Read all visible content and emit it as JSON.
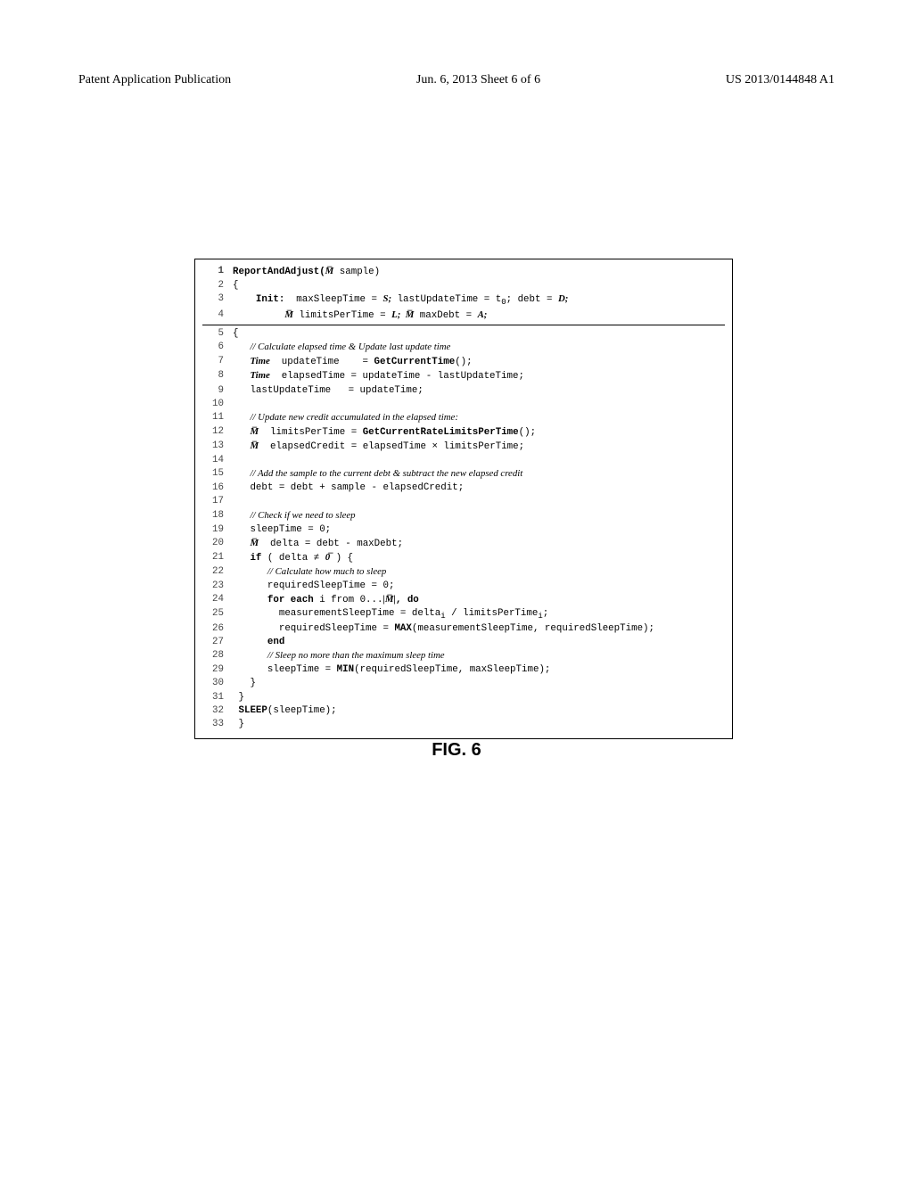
{
  "header": {
    "left": "Patent Application Publication",
    "mid": "Jun. 6, 2013  Sheet 6 of 6",
    "right": "US 2013/0144848 A1"
  },
  "figure_caption": "FIG. 6",
  "code": {
    "title_prefix": "ReportAndAdjust(",
    "title_vec": "M̅",
    "title_suffix": " sample)",
    "init_label": "Init:",
    "init_rest": "  maxSleepTime = ",
    "init_S": "S;",
    "init_rest2": " lastUpdateTime = t",
    "init_sub": "0",
    "init_rest3": "; debt = ",
    "init_D": "D;",
    "line4_vec": "M̅",
    "line4_rest": " limitsPerTime = ",
    "line4_L": "L;",
    "line4_vec2": "  M̅",
    "line4_rest2": " maxDebt = ",
    "line4_A": "A;",
    "comment6": "// Calculate elapsed time & Update last update time",
    "line7_kw": "Time",
    "line7_rest": "  updateTime    = ",
    "line7_fn": "GetCurrentTime",
    "line7_rest2": "();",
    "line8_kw": "Time",
    "line8_rest": "  elapsedTime = updateTime - lastUpdateTime;",
    "line9": "lastUpdateTime   = updateTime;",
    "comment11": "// Update new credit accumulated in the elapsed time:",
    "line12_vec": "M̅",
    "line12_rest": "  limitsPerTime = ",
    "line12_fn": "GetCurrentRateLimitsPerTime",
    "line12_rest2": "();",
    "line13_vec": "M̅",
    "line13_rest": "  elapsedCredit = elapsedTime × limitsPerTime;",
    "comment15": "// Add the sample to the current debt & subtract the new elapsed credit",
    "line16": "debt = debt + sample - elapsedCredit;",
    "comment18": "// Check if we need to sleep",
    "line19": "sleepTime = 0;",
    "line20_vec": "M̅",
    "line20_rest": "  delta = debt - maxDebt;",
    "line21_if": "if",
    "line21_rest": " ( delta ≠ ",
    "line21_zero": "0̅",
    "line21_rest2": " ) {",
    "comment22": "// Calculate how much to sleep",
    "line23": "requiredSleepTime = 0;",
    "line24_for": "for each",
    "line24_rest": " i from 0...",
    "line24_vec": "|M̅|",
    "line24_do": ", do",
    "line25": "measurementSleepTime = delta",
    "line25_sub": "i",
    "line25_rest": " / limitsPerTime",
    "line25_sub2": "i",
    "line25_rest2": ";",
    "line26_pre": "requiredSleepTime = ",
    "line26_max": "MAX",
    "line26_rest": "(measurementSleepTime, requiredSleepTime);",
    "line27": "end",
    "comment28": "// Sleep no more than the maximum sleep time",
    "line29_pre": "sleepTime = ",
    "line29_min": "MIN",
    "line29_rest": "(requiredSleepTime, maxSleepTime);",
    "line30": "}",
    "line31": "}",
    "line32_sleep": "SLEEP",
    "line32_rest": "(sleepTime);",
    "line33": "}",
    "lnums": [
      "1",
      "2",
      "3",
      "4",
      "5",
      "6",
      "7",
      "8",
      "9",
      "10",
      "11",
      "12",
      "13",
      "14",
      "15",
      "16",
      "17",
      "18",
      "19",
      "20",
      "21",
      "22",
      "23",
      "24",
      "25",
      "26",
      "27",
      "28",
      "29",
      "30",
      "31",
      "32",
      "33"
    ]
  }
}
